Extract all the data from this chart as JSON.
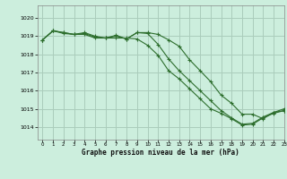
{
  "title": "Graphe pression niveau de la mer (hPa)",
  "background_color": "#cceedd",
  "grid_color": "#aaccbb",
  "line_color": "#2d6e2d",
  "xlim": [
    -0.5,
    23
  ],
  "ylim": [
    1013.3,
    1020.7
  ],
  "yticks": [
    1014,
    1015,
    1016,
    1017,
    1018,
    1019,
    1020
  ],
  "xticks": [
    0,
    1,
    2,
    3,
    4,
    5,
    6,
    7,
    8,
    9,
    10,
    11,
    12,
    13,
    14,
    15,
    16,
    17,
    18,
    19,
    20,
    21,
    22,
    23
  ],
  "series1": [
    1018.8,
    1019.3,
    1019.2,
    1019.1,
    1019.2,
    1019.0,
    1018.9,
    1019.05,
    1018.85,
    1019.2,
    1019.2,
    1019.1,
    1018.8,
    1018.45,
    1017.7,
    1017.1,
    1016.5,
    1015.75,
    1015.3,
    1014.7,
    1014.7,
    1014.45,
    1014.8,
    1015.0
  ],
  "series2": [
    1018.8,
    1019.3,
    1019.15,
    1019.1,
    1019.15,
    1018.95,
    1018.9,
    1018.9,
    1018.9,
    1018.85,
    1018.5,
    1017.95,
    1017.1,
    1016.65,
    1016.1,
    1015.55,
    1015.0,
    1014.75,
    1014.45,
    1014.1,
    1014.15,
    1014.5,
    1014.75,
    1014.9
  ],
  "series3": [
    1018.8,
    1019.3,
    1019.2,
    1019.1,
    1019.1,
    1018.9,
    1018.9,
    1019.0,
    1018.85,
    1019.2,
    1019.15,
    1018.55,
    1017.75,
    1017.1,
    1016.55,
    1016.0,
    1015.45,
    1014.9,
    1014.5,
    1014.15,
    1014.2,
    1014.55,
    1014.8,
    1014.9
  ]
}
